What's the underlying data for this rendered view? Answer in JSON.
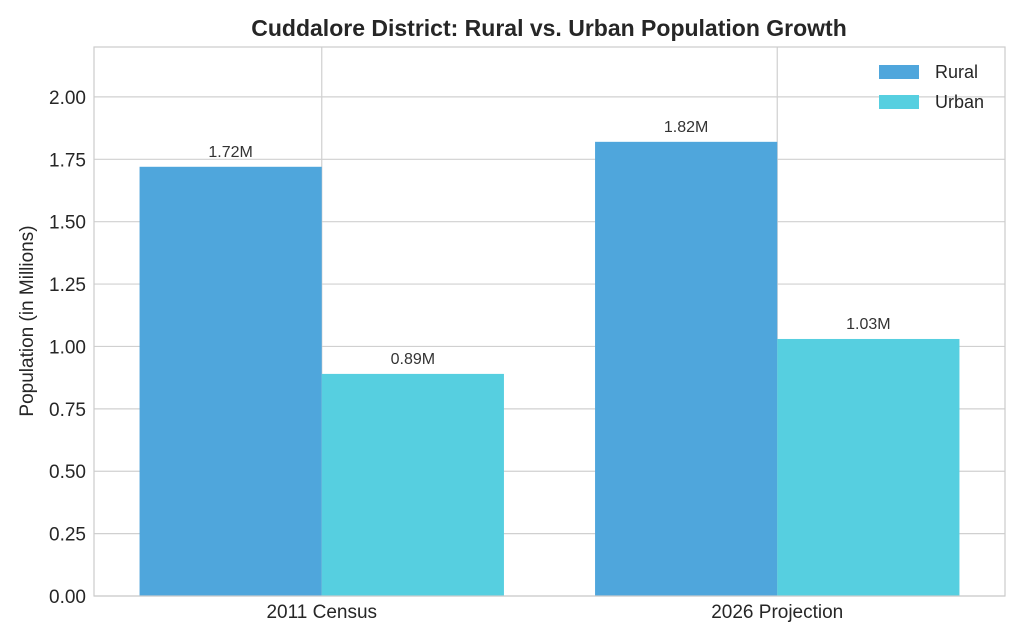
{
  "chart_data": {
    "type": "bar",
    "title": "Cuddalore District: Rural vs. Urban Population Growth",
    "xlabel": "",
    "ylabel": "Population (in Millions)",
    "categories": [
      "2011 Census",
      "2026 Projection"
    ],
    "series": [
      {
        "name": "Rural",
        "values": [
          1.72,
          1.82
        ],
        "labels": [
          "1.72M",
          "1.82M"
        ],
        "color": "#4fa6dc"
      },
      {
        "name": "Urban",
        "values": [
          0.89,
          1.03
        ],
        "labels": [
          "0.89M",
          "1.03M"
        ],
        "color": "#56cfe0"
      }
    ],
    "ylim": [
      0,
      2.2
    ],
    "yticks": [
      "0.00",
      "0.25",
      "0.50",
      "0.75",
      "1.00",
      "1.25",
      "1.50",
      "1.75",
      "2.00"
    ],
    "grid": true,
    "legend_position": "top-right"
  }
}
